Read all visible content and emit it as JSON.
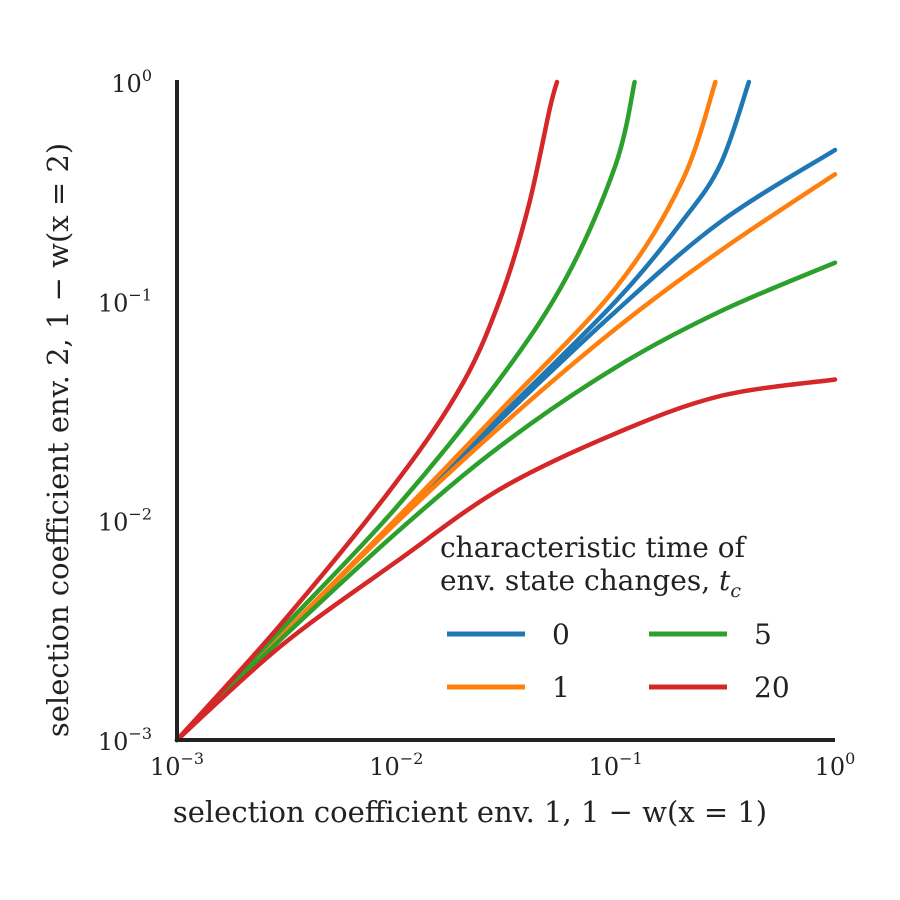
{
  "chart_data": {
    "type": "line",
    "xscale": "log",
    "yscale": "log",
    "xlim": [
      0.001,
      1
    ],
    "ylim": [
      0.001,
      1
    ],
    "grid": false,
    "xlabel": "selection coefficient env. 1, 1 − w(x = 1)",
    "ylabel": "selection coefficient env. 2, 1 − w(x = 2)",
    "x_ticks": [
      {
        "base": "10",
        "exp": "−3",
        "value": 0.001
      },
      {
        "base": "10",
        "exp": "−2",
        "value": 0.01
      },
      {
        "base": "10",
        "exp": "−1",
        "value": 0.1
      },
      {
        "base": "10",
        "exp": "0",
        "value": 1
      }
    ],
    "y_ticks": [
      {
        "base": "10",
        "exp": "−3",
        "value": 0.001
      },
      {
        "base": "10",
        "exp": "−2",
        "value": 0.01
      },
      {
        "base": "10",
        "exp": "−1",
        "value": 0.1
      },
      {
        "base": "10",
        "exp": "0",
        "value": 1
      }
    ],
    "legend": {
      "title_line1": "characteristic time of",
      "title_line2": "env. state changes, ",
      "title_var": "t",
      "title_sub": "c",
      "placement": "lower-right"
    },
    "series": [
      {
        "name": "0",
        "color": "#1f77b4",
        "upper": {
          "x": [
            0.001,
            0.003,
            0.01,
            0.03,
            0.1,
            0.2,
            0.3,
            0.405
          ],
          "y": [
            0.001,
            0.003,
            0.01,
            0.03,
            0.1,
            0.23,
            0.42,
            1.0
          ]
        },
        "lower": {
          "x": [
            0.001,
            0.003,
            0.01,
            0.03,
            0.1,
            0.3,
            1.0
          ],
          "y": [
            0.001,
            0.003,
            0.0099,
            0.029,
            0.09,
            0.23,
            0.49
          ]
        }
      },
      {
        "name": "1",
        "color": "#ff7f0e",
        "upper": {
          "x": [
            0.001,
            0.003,
            0.01,
            0.03,
            0.1,
            0.2,
            0.285
          ],
          "y": [
            0.001,
            0.003,
            0.0102,
            0.032,
            0.115,
            0.35,
            1.0
          ]
        },
        "lower": {
          "x": [
            0.001,
            0.003,
            0.01,
            0.03,
            0.1,
            0.3,
            1.0
          ],
          "y": [
            0.001,
            0.003,
            0.0098,
            0.027,
            0.075,
            0.17,
            0.38
          ]
        }
      },
      {
        "name": "5",
        "color": "#2ca02c",
        "upper": {
          "x": [
            0.001,
            0.003,
            0.01,
            0.03,
            0.06,
            0.1,
            0.122
          ],
          "y": [
            0.001,
            0.0032,
            0.0115,
            0.045,
            0.13,
            0.42,
            1.0
          ]
        },
        "lower": {
          "x": [
            0.001,
            0.003,
            0.01,
            0.03,
            0.1,
            0.3,
            1.0
          ],
          "y": [
            0.001,
            0.0029,
            0.0088,
            0.022,
            0.05,
            0.09,
            0.15
          ]
        }
      },
      {
        "name": "20",
        "color": "#d62728",
        "upper": {
          "x": [
            0.001,
            0.003,
            0.01,
            0.02,
            0.03,
            0.04,
            0.05,
            0.054
          ],
          "y": [
            0.001,
            0.0034,
            0.015,
            0.042,
            0.105,
            0.27,
            0.75,
            1.0
          ]
        },
        "lower": {
          "x": [
            0.001,
            0.003,
            0.01,
            0.03,
            0.1,
            0.3,
            1.0
          ],
          "y": [
            0.001,
            0.0027,
            0.0065,
            0.014,
            0.025,
            0.037,
            0.044
          ]
        }
      }
    ]
  }
}
